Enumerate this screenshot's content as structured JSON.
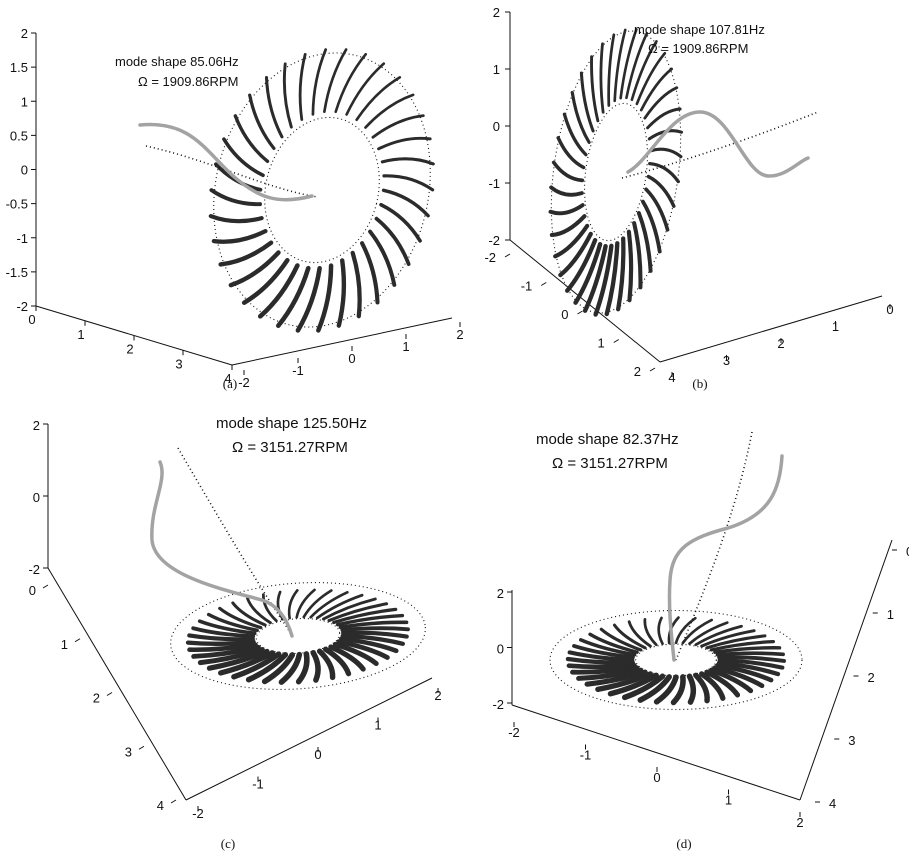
{
  "chart_data": [
    {
      "type": "scatter",
      "panel": "(a)",
      "annotation": [
        "mode shape 85.06Hz",
        "Ω = 1909.86RPM"
      ],
      "frequency_hz": 85.06,
      "speed_rpm": 1909.86,
      "z_ticks": [
        "2",
        "1.5",
        "1",
        "0.5",
        "0",
        "-0.5",
        "-1",
        "-1.5",
        "-2"
      ],
      "x_ticks": [
        "0",
        "1",
        "2",
        "3",
        "4"
      ],
      "y_ticks": [
        "-2",
        "-1",
        "0",
        "1",
        "2"
      ]
    },
    {
      "type": "scatter",
      "panel": "(b)",
      "annotation": [
        "mode shape 107.81Hz",
        "Ω = 1909.86RPM"
      ],
      "frequency_hz": 107.81,
      "speed_rpm": 1909.86,
      "z_ticks": [
        "2",
        "1",
        "0",
        "-1",
        "-2"
      ],
      "y_ticks": [
        "-2",
        "-1",
        "0",
        "1",
        "2"
      ],
      "x_ticks": [
        "4",
        "3",
        "2",
        "1",
        "0"
      ]
    },
    {
      "type": "scatter",
      "panel": "(c)",
      "annotation": [
        "mode shape 125.50Hz",
        "Ω = 3151.27RPM"
      ],
      "frequency_hz": 125.5,
      "speed_rpm": 3151.27,
      "z_ticks": [
        "2",
        "0",
        "-2"
      ],
      "x_ticks": [
        "0",
        "1",
        "2",
        "3",
        "4"
      ],
      "y_ticks": [
        "-2",
        "-1",
        "0",
        "1",
        "2"
      ]
    },
    {
      "type": "scatter",
      "panel": "(d)",
      "annotation": [
        "mode shape 82.37Hz",
        "Ω = 3151.27RPM"
      ],
      "frequency_hz": 82.37,
      "speed_rpm": 3151.27,
      "z_ticks": [
        "2",
        "0",
        "-2"
      ],
      "y_ticks": [
        "-2",
        "-1",
        "0",
        "1",
        "2"
      ],
      "x_ticks": [
        "0",
        "1",
        "2",
        "3",
        "4"
      ]
    }
  ]
}
